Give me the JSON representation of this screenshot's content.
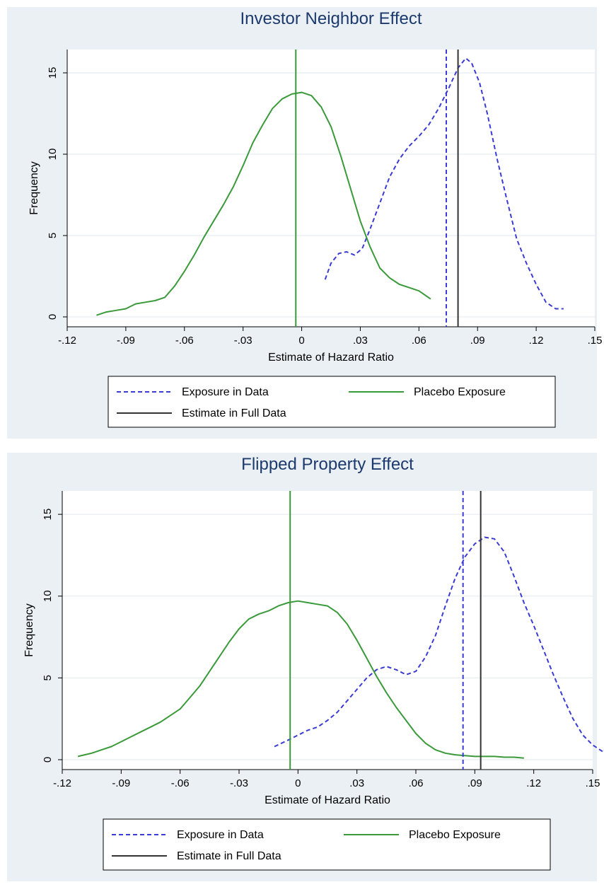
{
  "chart_data": [
    {
      "type": "line",
      "title": "Investor Neighbor Effect",
      "xlabel": "Estimate of Hazard Ratio",
      "ylabel": "Frequency",
      "xlim": [
        -0.12,
        0.15
      ],
      "ylim": [
        0,
        16
      ],
      "x_ticks": [
        -0.12,
        -0.09,
        -0.06,
        -0.03,
        0,
        0.03,
        0.06,
        0.09,
        0.12,
        0.15
      ],
      "x_tick_labels": [
        "-.12",
        "-.09",
        "-.06",
        "-.03",
        "0",
        ".03",
        ".06",
        ".09",
        ".12",
        ".15"
      ],
      "y_ticks": [
        0,
        5,
        10,
        15
      ],
      "y_tick_labels": [
        "0",
        "5",
        "10",
        "15"
      ],
      "grid": "horizontal",
      "legend_position": "bottom",
      "series": [
        {
          "name": "Exposure in Data",
          "style": "dashed",
          "color": "#3b3bd6",
          "x": [
            0.012,
            0.015,
            0.019,
            0.023,
            0.027,
            0.031,
            0.035,
            0.04,
            0.045,
            0.05,
            0.055,
            0.06,
            0.065,
            0.07,
            0.075,
            0.08,
            0.084,
            0.087,
            0.091,
            0.095,
            0.1,
            0.105,
            0.11,
            0.115,
            0.12,
            0.125,
            0.13,
            0.134
          ],
          "y": [
            2.3,
            3.3,
            3.9,
            4.0,
            3.8,
            4.2,
            5.4,
            7.0,
            8.6,
            9.7,
            10.5,
            11.1,
            11.8,
            12.8,
            14.0,
            15.3,
            15.9,
            15.6,
            14.4,
            12.5,
            9.7,
            7.2,
            4.8,
            3.3,
            2.0,
            0.9,
            0.5,
            0.5
          ]
        },
        {
          "name": "Placebo Exposure",
          "style": "solid",
          "color": "#3a9a3a",
          "x": [
            -0.105,
            -0.1,
            -0.095,
            -0.09,
            -0.085,
            -0.08,
            -0.075,
            -0.07,
            -0.065,
            -0.06,
            -0.055,
            -0.05,
            -0.045,
            -0.04,
            -0.035,
            -0.03,
            -0.025,
            -0.02,
            -0.015,
            -0.01,
            -0.005,
            0.0,
            0.005,
            0.01,
            0.015,
            0.02,
            0.025,
            0.03,
            0.035,
            0.04,
            0.045,
            0.05,
            0.055,
            0.06,
            0.066
          ],
          "y": [
            0.1,
            0.3,
            0.4,
            0.5,
            0.8,
            0.9,
            1.0,
            1.2,
            1.9,
            2.8,
            3.8,
            4.9,
            5.9,
            6.9,
            8.0,
            9.3,
            10.7,
            11.8,
            12.8,
            13.4,
            13.7,
            13.8,
            13.6,
            12.9,
            11.7,
            9.9,
            7.9,
            5.9,
            4.3,
            3.0,
            2.4,
            2.0,
            1.8,
            1.6,
            1.1
          ]
        },
        {
          "name": "Estimate in Full Data",
          "style": "solid",
          "color": "#333333",
          "vline": 0.08
        }
      ],
      "vlines": [
        {
          "series": "Exposure in Data",
          "x": 0.074
        },
        {
          "series": "Placebo Exposure",
          "x": -0.003
        },
        {
          "series": "Estimate in Full Data",
          "x": 0.08
        }
      ]
    },
    {
      "type": "line",
      "title": "Flipped Property Effect",
      "xlabel": "Estimate of Hazard Ratio",
      "ylabel": "Frequency",
      "xlim": [
        -0.12,
        0.15
      ],
      "ylim": [
        0,
        16
      ],
      "x_ticks": [
        -0.12,
        -0.09,
        -0.06,
        -0.03,
        0,
        0.03,
        0.06,
        0.09,
        0.12,
        0.15
      ],
      "x_tick_labels": [
        "-.12",
        "-.09",
        "-.06",
        "-.03",
        "0",
        ".03",
        ".06",
        ".09",
        ".12",
        ".15"
      ],
      "y_ticks": [
        0,
        5,
        10,
        15
      ],
      "y_tick_labels": [
        "0",
        "5",
        "10",
        "15"
      ],
      "grid": "horizontal",
      "legend_position": "bottom",
      "series": [
        {
          "name": "Exposure in Data",
          "style": "dashed",
          "color": "#3b3bd6",
          "x": [
            -0.012,
            -0.005,
            0.0,
            0.005,
            0.01,
            0.015,
            0.02,
            0.025,
            0.03,
            0.035,
            0.04,
            0.045,
            0.05,
            0.055,
            0.06,
            0.065,
            0.07,
            0.075,
            0.08,
            0.085,
            0.09,
            0.095,
            0.1,
            0.105,
            0.11,
            0.115,
            0.12,
            0.125,
            0.13,
            0.135,
            0.14,
            0.145,
            0.15,
            0.155
          ],
          "y": [
            0.8,
            1.2,
            1.5,
            1.8,
            2.0,
            2.4,
            2.9,
            3.6,
            4.3,
            5.0,
            5.5,
            5.7,
            5.5,
            5.2,
            5.4,
            6.3,
            7.6,
            9.4,
            11.1,
            12.4,
            13.2,
            13.6,
            13.5,
            12.7,
            11.2,
            9.6,
            8.2,
            6.7,
            5.2,
            3.8,
            2.5,
            1.5,
            0.9,
            0.5
          ]
        },
        {
          "name": "Placebo Exposure",
          "style": "solid",
          "color": "#3a9a3a",
          "x": [
            -0.112,
            -0.105,
            -0.1,
            -0.095,
            -0.09,
            -0.085,
            -0.08,
            -0.075,
            -0.07,
            -0.065,
            -0.06,
            -0.055,
            -0.05,
            -0.045,
            -0.04,
            -0.035,
            -0.03,
            -0.025,
            -0.02,
            -0.015,
            -0.01,
            -0.005,
            0.0,
            0.005,
            0.01,
            0.015,
            0.02,
            0.025,
            0.03,
            0.035,
            0.04,
            0.045,
            0.05,
            0.055,
            0.06,
            0.065,
            0.07,
            0.075,
            0.08,
            0.085,
            0.09,
            0.095,
            0.1,
            0.105,
            0.11,
            0.115
          ],
          "y": [
            0.2,
            0.4,
            0.6,
            0.8,
            1.1,
            1.4,
            1.7,
            2.0,
            2.3,
            2.7,
            3.1,
            3.8,
            4.5,
            5.4,
            6.3,
            7.2,
            8.0,
            8.6,
            8.9,
            9.1,
            9.4,
            9.6,
            9.7,
            9.6,
            9.5,
            9.4,
            9.0,
            8.3,
            7.3,
            6.2,
            5.1,
            4.1,
            3.2,
            2.4,
            1.6,
            1.0,
            0.6,
            0.4,
            0.3,
            0.25,
            0.2,
            0.2,
            0.2,
            0.15,
            0.15,
            0.1
          ]
        },
        {
          "name": "Estimate in Full Data",
          "style": "solid",
          "color": "#333333",
          "vline": 0.093
        }
      ],
      "vlines": [
        {
          "series": "Exposure in Data",
          "x": 0.084
        },
        {
          "series": "Placebo Exposure",
          "x": -0.004
        },
        {
          "series": "Estimate in Full Data",
          "x": 0.093
        }
      ]
    }
  ],
  "colors": {
    "outer_background": "#eaf0f4",
    "plot_background": "#ffffff",
    "grid": "#e3e8ec",
    "title": "#1c3a6e"
  }
}
